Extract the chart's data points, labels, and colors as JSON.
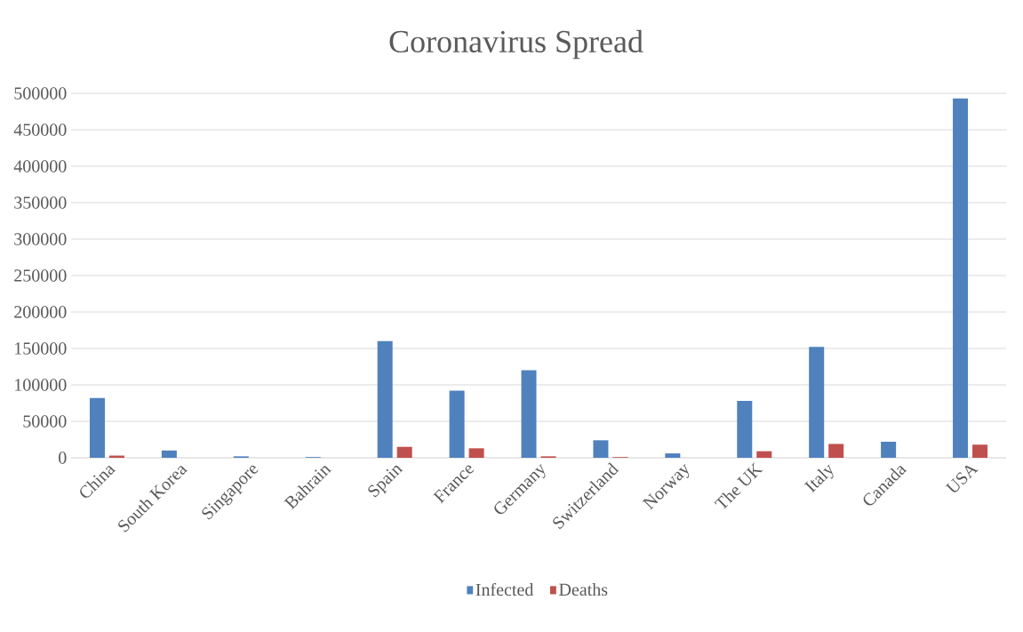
{
  "chart_data": {
    "type": "bar",
    "title": "Coronavirus Spread",
    "categories": [
      "China",
      "South Korea",
      "Singapore",
      "Bahrain",
      "Spain",
      "France",
      "Germany",
      "Switzerland",
      "Norway",
      "The UK",
      "Italy",
      "Canada",
      "USA"
    ],
    "series": [
      {
        "name": "Infected",
        "color": "#4f81bd",
        "values": [
          82000,
          10000,
          2000,
          1000,
          160000,
          92000,
          120000,
          24000,
          6000,
          78000,
          152000,
          22000,
          493000
        ]
      },
      {
        "name": "Deaths",
        "color": "#c0504d",
        "values": [
          3000,
          null,
          null,
          null,
          15000,
          13000,
          2000,
          1000,
          null,
          9000,
          19000,
          null,
          18000
        ]
      }
    ],
    "ylim": [
      0,
      500000
    ],
    "yticks": [
      0,
      50000,
      100000,
      150000,
      200000,
      250000,
      300000,
      350000,
      400000,
      450000,
      500000
    ],
    "grid": "y",
    "legend": "bottom"
  }
}
